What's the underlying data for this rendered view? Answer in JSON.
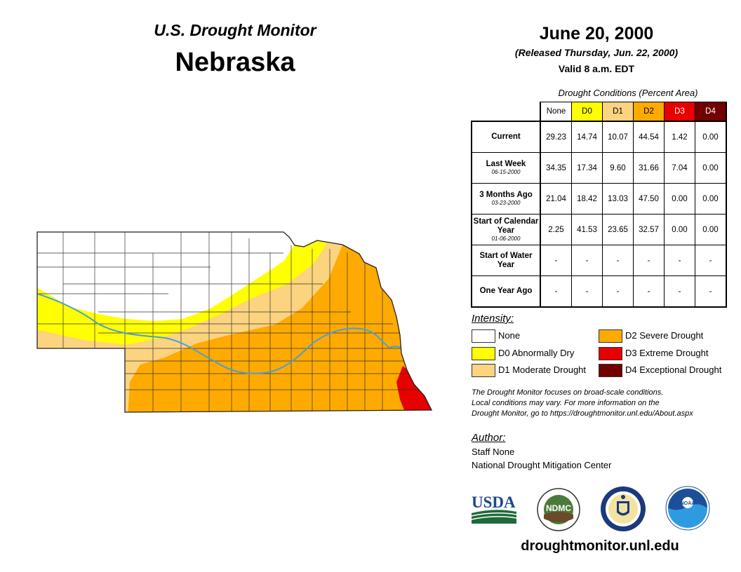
{
  "header": {
    "subtitle": "U.S. Drought Monitor",
    "state": "Nebraska",
    "date": "June 20, 2000",
    "released": "(Released Thursday, Jun. 22, 2000)",
    "valid": "Valid 8 a.m. EDT"
  },
  "table": {
    "title": "Drought Conditions (Percent Area)",
    "columns": [
      "None",
      "D0",
      "D1",
      "D2",
      "D3",
      "D4"
    ],
    "column_colors": [
      "#ffffff",
      "#ffff00",
      "#fcd37f",
      "#ffaa00",
      "#e60000",
      "#730000"
    ],
    "rows": [
      {
        "label": "Current",
        "date": "",
        "values": [
          "29.23",
          "14.74",
          "10.07",
          "44.54",
          "1.42",
          "0.00"
        ]
      },
      {
        "label": "Last Week",
        "date": "06-15-2000",
        "values": [
          "34.35",
          "17.34",
          "9.60",
          "31.66",
          "7.04",
          "0.00"
        ]
      },
      {
        "label": "3 Months Ago",
        "date": "03-23-2000",
        "values": [
          "21.04",
          "18.42",
          "13.03",
          "47.50",
          "0.00",
          "0.00"
        ]
      },
      {
        "label": "Start of Calendar Year",
        "date": "01-06-2000",
        "values": [
          "2.25",
          "41.53",
          "23.65",
          "32.57",
          "0.00",
          "0.00"
        ]
      },
      {
        "label": "Start of Water Year",
        "date": "",
        "values": [
          "-",
          "-",
          "-",
          "-",
          "-",
          "-"
        ]
      },
      {
        "label": "One Year Ago",
        "date": "",
        "values": [
          "-",
          "-",
          "-",
          "-",
          "-",
          "-"
        ]
      }
    ]
  },
  "legend": {
    "title": "Intensity:",
    "items": [
      {
        "label": "None",
        "color": "#ffffff"
      },
      {
        "label": "D0 Abnormally Dry",
        "color": "#ffff00"
      },
      {
        "label": "D1 Moderate Drought",
        "color": "#fcd37f"
      },
      {
        "label": "D2 Severe Drought",
        "color": "#ffaa00"
      },
      {
        "label": "D3 Extreme Drought",
        "color": "#e60000"
      },
      {
        "label": "D4 Exceptional Drought",
        "color": "#730000"
      }
    ]
  },
  "note": {
    "line1": "The Drought Monitor focuses on broad-scale conditions.",
    "line2": "Local conditions may vary. For more information on the",
    "line3": "Drought Monitor, go to https://droughtmonitor.unl.edu/About.aspx"
  },
  "author": {
    "title": "Author:",
    "name": "Staff None",
    "org": "National Drought Mitigation Center"
  },
  "logos": {
    "usda": "USDA",
    "ndmc": "NDMC",
    "noaa": "NOAA"
  },
  "map_colors": {
    "none": "#ffffff",
    "d0": "#ffff00",
    "d1": "#fcd37f",
    "d2": "#ffaa00",
    "d3": "#e60000",
    "river": "#4a9fd8"
  },
  "footer_url": "droughtmonitor.unl.edu"
}
